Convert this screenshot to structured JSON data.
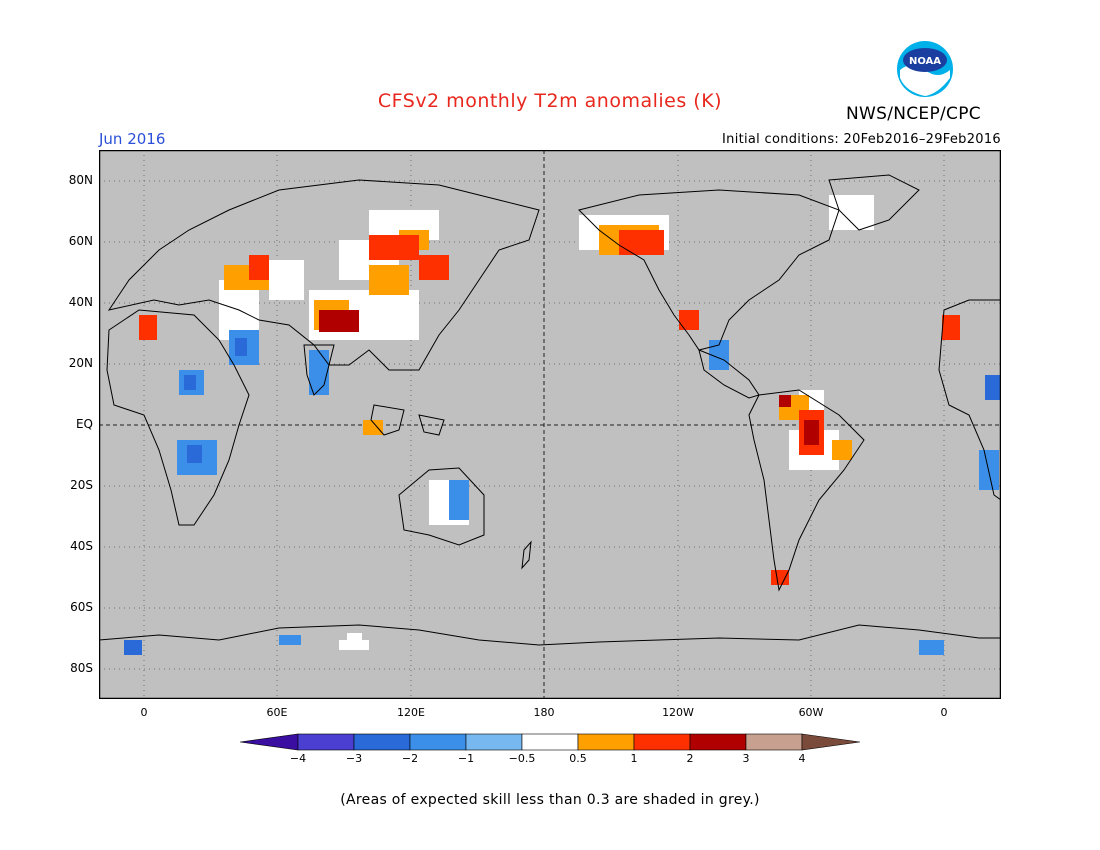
{
  "title": "CFSv2 monthly T2m anomalies (K)",
  "organization": "NWS/NCEP/CPC",
  "logo_text": "NOAA",
  "month": "Jun 2016",
  "initial_conditions": "Initial conditions: 20Feb2016–29Feb2016",
  "footnote": "(Areas of expected skill less than 0.3 are shaded in grey.)",
  "map": {
    "background_color": "#c0c0c0",
    "y_axis_labels": [
      "80N",
      "60N",
      "40N",
      "20N",
      "EQ",
      "20S",
      "40S",
      "60S",
      "80S"
    ],
    "x_axis_labels": [
      "0",
      "60E",
      "120E",
      "180",
      "120W",
      "60W",
      "0"
    ]
  },
  "colorbar": {
    "tick_labels": [
      "−4",
      "−3",
      "−2",
      "−1",
      "−0.5",
      "0.5",
      "1",
      "2",
      "3",
      "4"
    ],
    "colors": [
      "#3a0ea0",
      "#4a3fd0",
      "#2a6ad8",
      "#3c8fe8",
      "#78b8f0",
      "#ffffff",
      "#ffa000",
      "#ff3000",
      "#b00000",
      "#c8a090",
      "#7a4a3a"
    ]
  }
}
